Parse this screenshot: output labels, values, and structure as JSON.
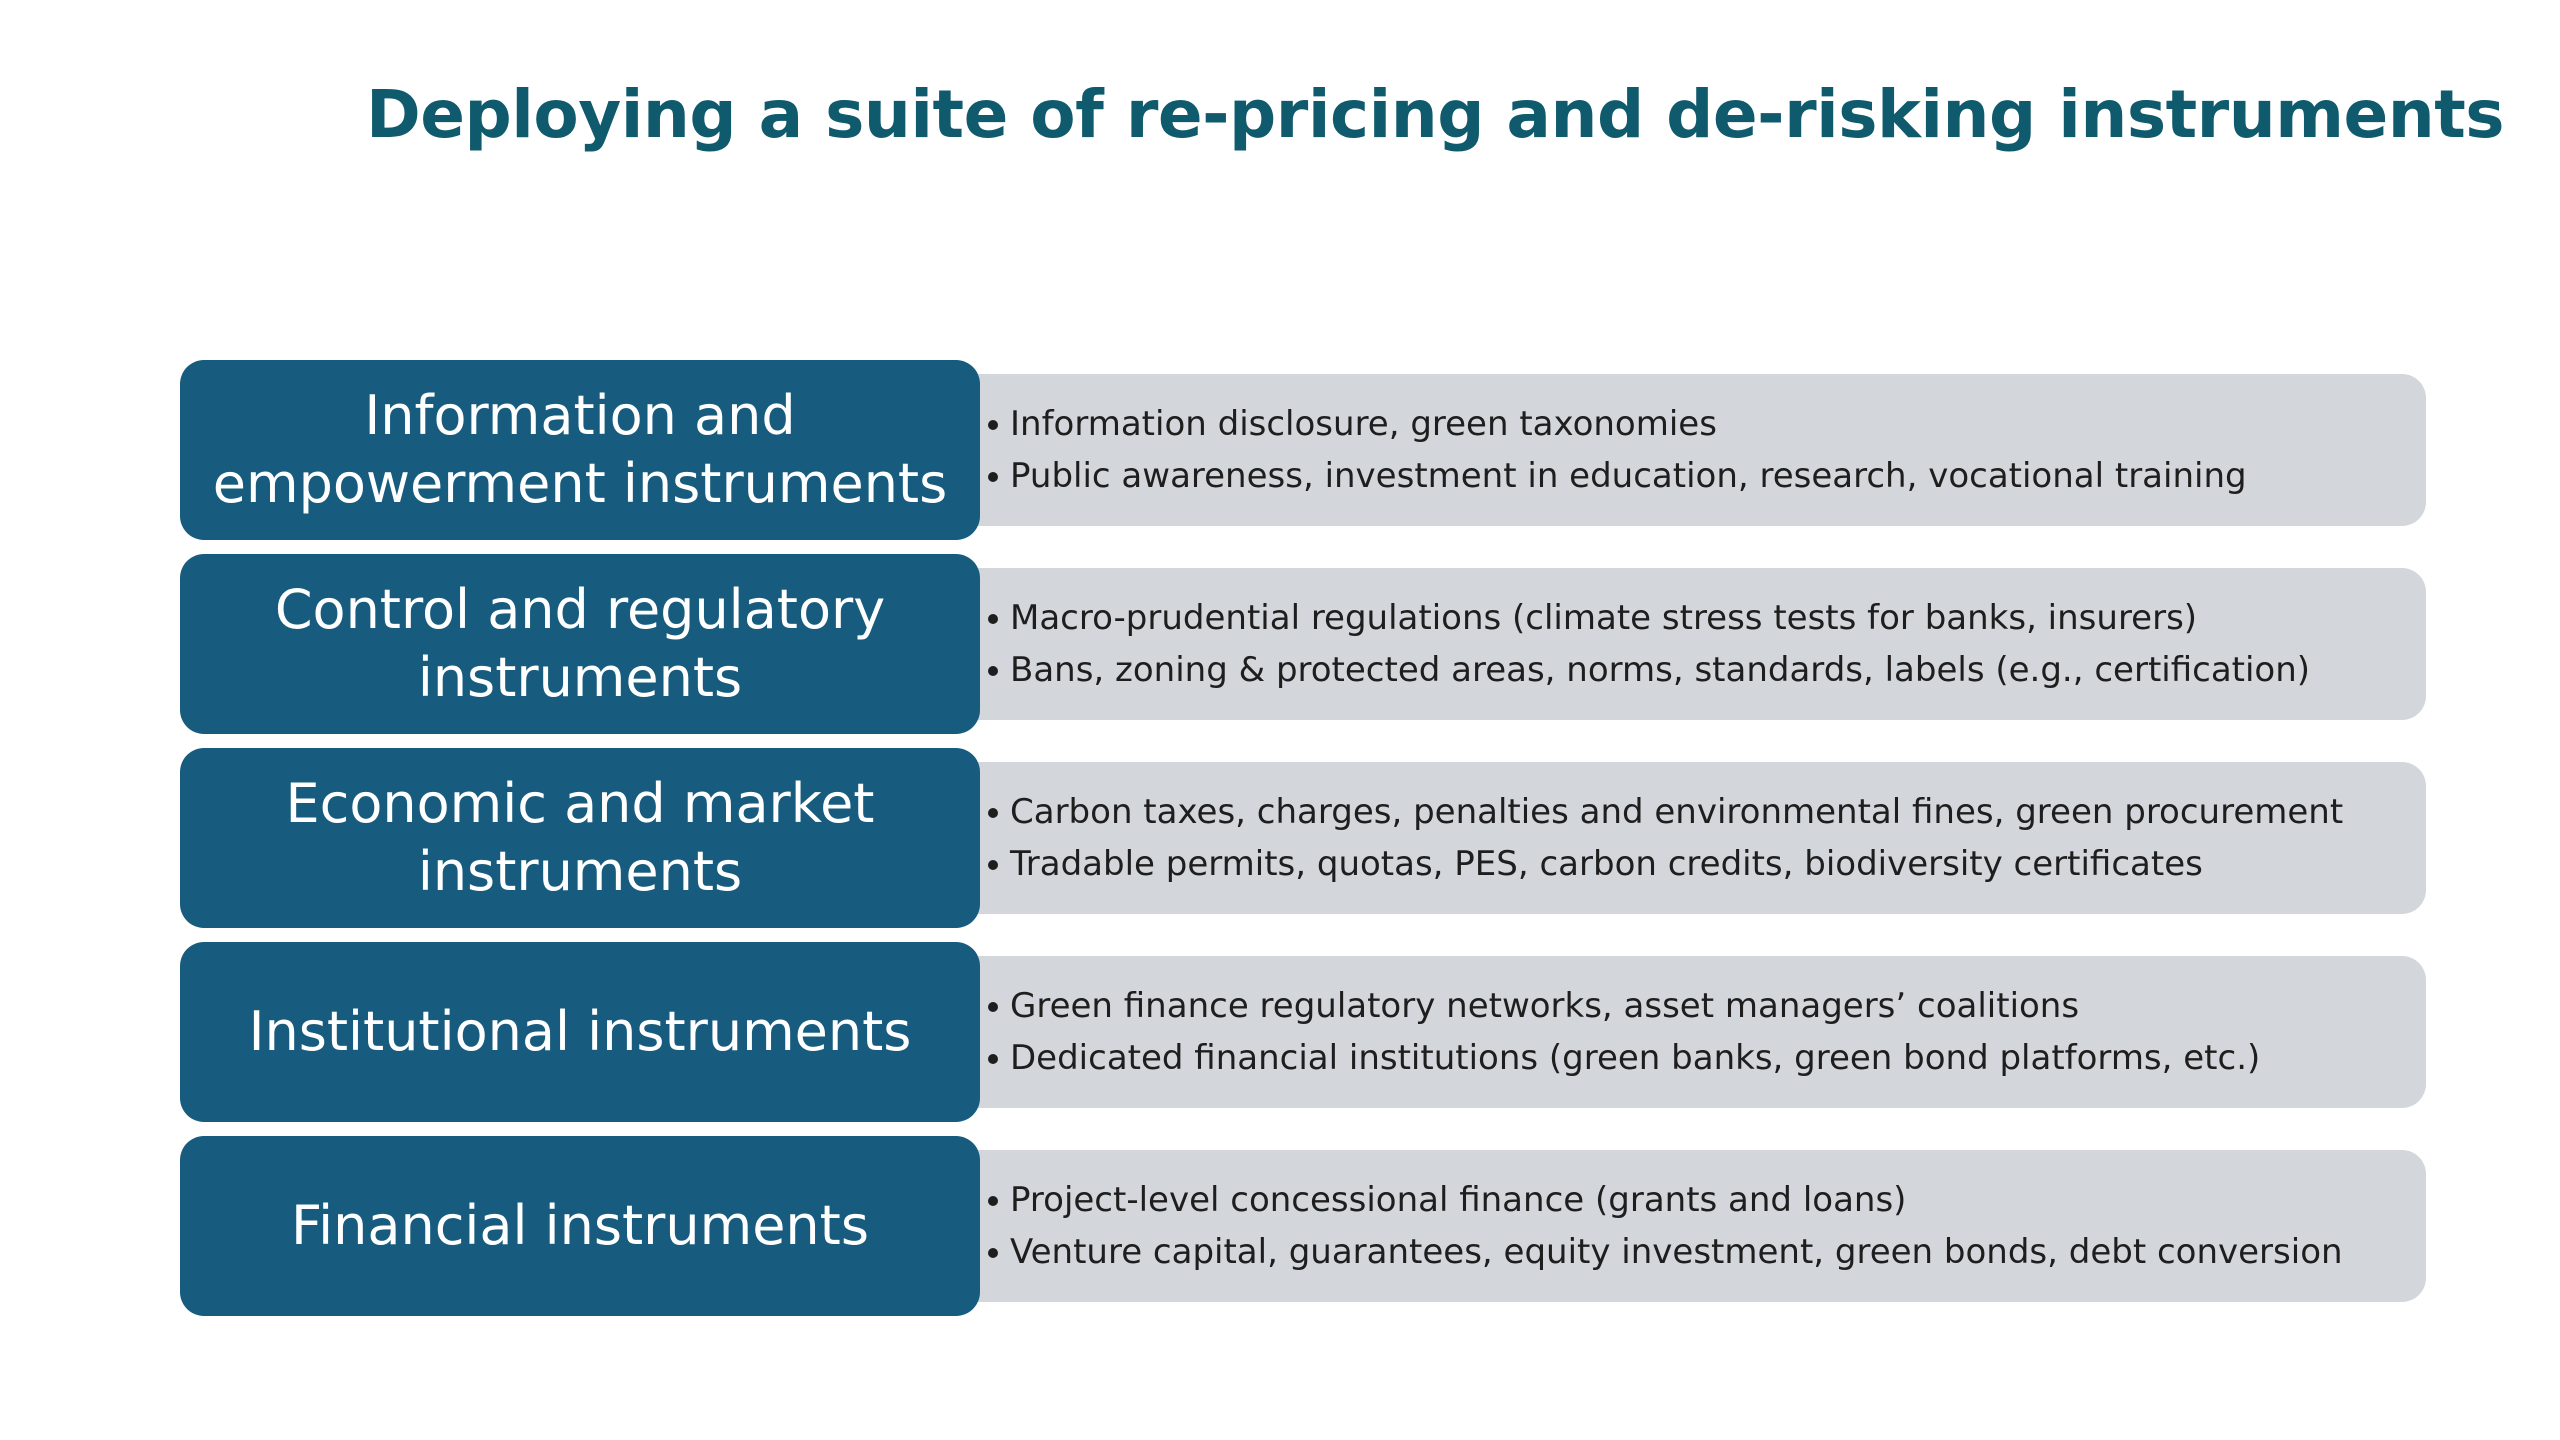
{
  "title": "Deploying a suite of re-pricing and de-risking instruments",
  "rows": [
    {
      "category": "Information and\nempowerment instruments",
      "items": [
        "Information disclosure, green taxonomies",
        "Public awareness, investment in education, research, vocational training"
      ]
    },
    {
      "category": "Control and regulatory\ninstruments",
      "items": [
        "Macro-prudential regulations (climate stress tests for banks, insurers)",
        "Bans, zoning & protected areas, norms, standards, labels (e.g., certification)"
      ]
    },
    {
      "category": "Economic and market\ninstruments",
      "items": [
        "Carbon taxes, charges, penalties and environmental fines, green procurement",
        "Tradable permits, quotas, PES, carbon credits, biodiversity certificates"
      ]
    },
    {
      "category": "Institutional instruments",
      "items": [
        "Green finance regulatory networks, asset managers’ coalitions",
        "Dedicated financial institutions (green banks, green bond platforms, etc.)"
      ]
    },
    {
      "category": "Financial instruments",
      "items": [
        "Project-level concessional finance (grants and loans)",
        "Venture capital, guarantees, equity investment, green bonds, debt conversion"
      ]
    }
  ],
  "colors": {
    "title": "#0f5a6c",
    "category_box": "#175c7e",
    "description_box": "#d3d7db"
  }
}
